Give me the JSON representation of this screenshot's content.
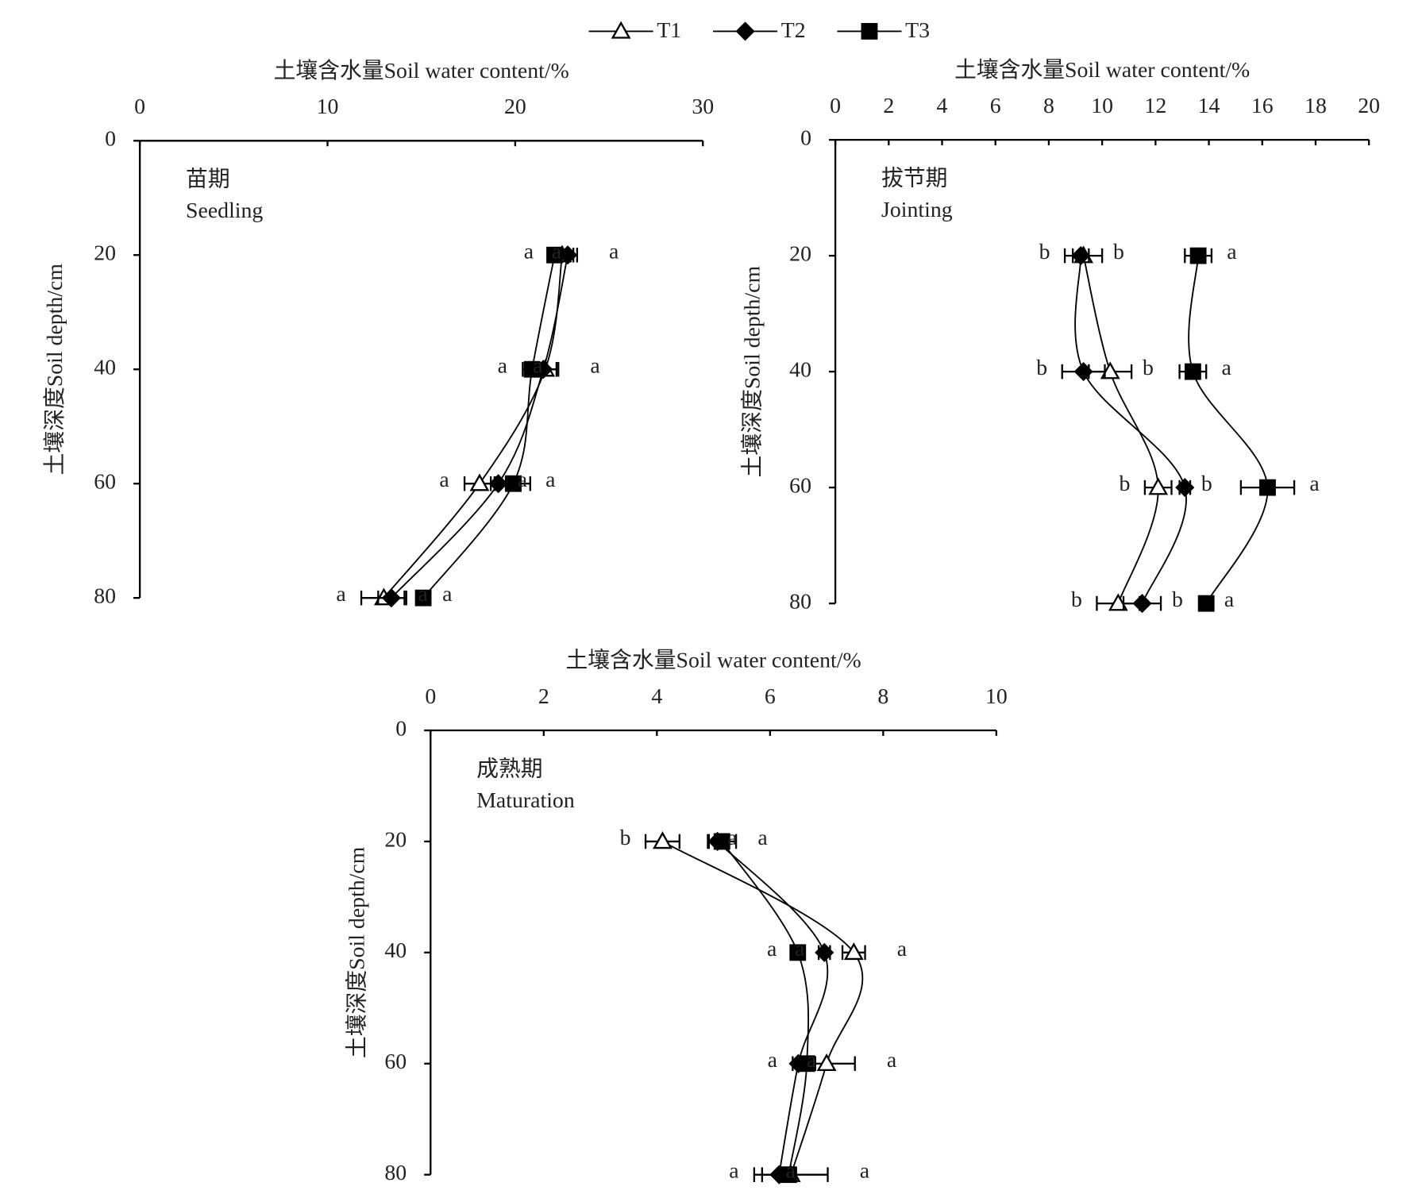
{
  "chart_data": [
    {
      "type": "line",
      "title": "苗期",
      "subtitle": "Seedling",
      "xlabel": "土壤含水量Soil water content/%",
      "ylabel": "土壤深度Soil depth/cm",
      "xlim": [
        0,
        30
      ],
      "xticks": [
        0,
        10,
        20,
        30
      ],
      "ylim": [
        0,
        80
      ],
      "yticks": [
        0,
        20,
        40,
        60,
        80
      ],
      "y": [
        20,
        40,
        60,
        80
      ],
      "series": [
        {
          "name": "T1",
          "marker": "triangle",
          "color": "#000000",
          "values": [
            22.5,
            21.6,
            18.1,
            13.0
          ],
          "errors": [
            0.6,
            0.7,
            0.8,
            1.2
          ],
          "letters": [
            "a",
            "a",
            "a",
            "a"
          ]
        },
        {
          "name": "T2",
          "marker": "diamond",
          "color": "#000000",
          "values": [
            22.8,
            21.5,
            19.1,
            13.4
          ],
          "errors": [
            0.5,
            0.7,
            0.4,
            0.7
          ],
          "letters": [
            "a",
            "a",
            "a",
            "a"
          ]
        },
        {
          "name": "T3",
          "marker": "square",
          "color": "#000000",
          "values": [
            22.1,
            20.9,
            19.9,
            15.1
          ],
          "errors": [
            0.3,
            0.5,
            0.9,
            0.2
          ],
          "letters": [
            "a",
            "a",
            "a",
            "a"
          ]
        }
      ]
    },
    {
      "type": "line",
      "title": "拔节期",
      "subtitle": "Jointing",
      "xlabel": "土壤含水量Soil water content/%",
      "ylabel": "土壤深度Soil depth/cm",
      "xlim": [
        0,
        20
      ],
      "xticks": [
        0,
        2,
        4,
        6,
        8,
        10,
        12,
        14,
        16,
        18,
        20
      ],
      "ylim": [
        0,
        80
      ],
      "yticks": [
        0,
        20,
        40,
        60,
        80
      ],
      "y": [
        20,
        40,
        60,
        80
      ],
      "series": [
        {
          "marker": "triangle",
          "color": "#000000",
          "values": [
            9.3,
            10.3,
            12.1,
            10.6
          ],
          "errors": [
            0.7,
            0.8,
            0.5,
            0.8
          ],
          "letters": [
            "b",
            "b",
            "b",
            "b"
          ]
        },
        {
          "marker": "diamond",
          "color": "#000000",
          "values": [
            9.2,
            9.3,
            13.1,
            11.5
          ],
          "errors": [
            0.3,
            0.8,
            0.2,
            0.7
          ],
          "letters": [
            "b",
            "b",
            "b",
            "b"
          ]
        },
        {
          "marker": "square",
          "color": "#000000",
          "values": [
            13.6,
            13.4,
            16.2,
            13.9
          ],
          "errors": [
            0.5,
            0.5,
            1.0,
            0.1
          ],
          "letters": [
            "a",
            "a",
            "a",
            "a"
          ]
        }
      ]
    },
    {
      "type": "line",
      "title": "成熟期",
      "subtitle": "Maturation",
      "xlabel": "土壤含水量Soil water content/%",
      "ylabel": "土壤深度Soil depth/cm",
      "xlim": [
        0,
        10
      ],
      "xticks": [
        0,
        2,
        4,
        6,
        8,
        10
      ],
      "ylim": [
        0,
        80
      ],
      "yticks": [
        0,
        20,
        40,
        60,
        80
      ],
      "y": [
        20,
        40,
        60,
        80
      ],
      "series": [
        {
          "marker": "triangle",
          "color": "#000000",
          "values": [
            4.1,
            7.48,
            7.0,
            6.37
          ],
          "errors": [
            0.3,
            0.2,
            0.5,
            0.65
          ],
          "letters": [
            "b",
            "a",
            "a",
            "a"
          ]
        },
        {
          "marker": "diamond",
          "color": "#000000",
          "values": [
            5.07,
            6.96,
            6.5,
            6.16
          ],
          "errors": [
            0.15,
            0.1,
            0.1,
            0.3
          ],
          "letters": [
            "a",
            "a",
            "a",
            "a"
          ]
        },
        {
          "marker": "square",
          "color": "#000000",
          "values": [
            5.15,
            6.49,
            6.65,
            6.33
          ],
          "errors": [
            0.25,
            0.1,
            0.15,
            0.1
          ],
          "letters": [
            "a",
            "a",
            "a",
            "a"
          ]
        }
      ]
    }
  ]
}
